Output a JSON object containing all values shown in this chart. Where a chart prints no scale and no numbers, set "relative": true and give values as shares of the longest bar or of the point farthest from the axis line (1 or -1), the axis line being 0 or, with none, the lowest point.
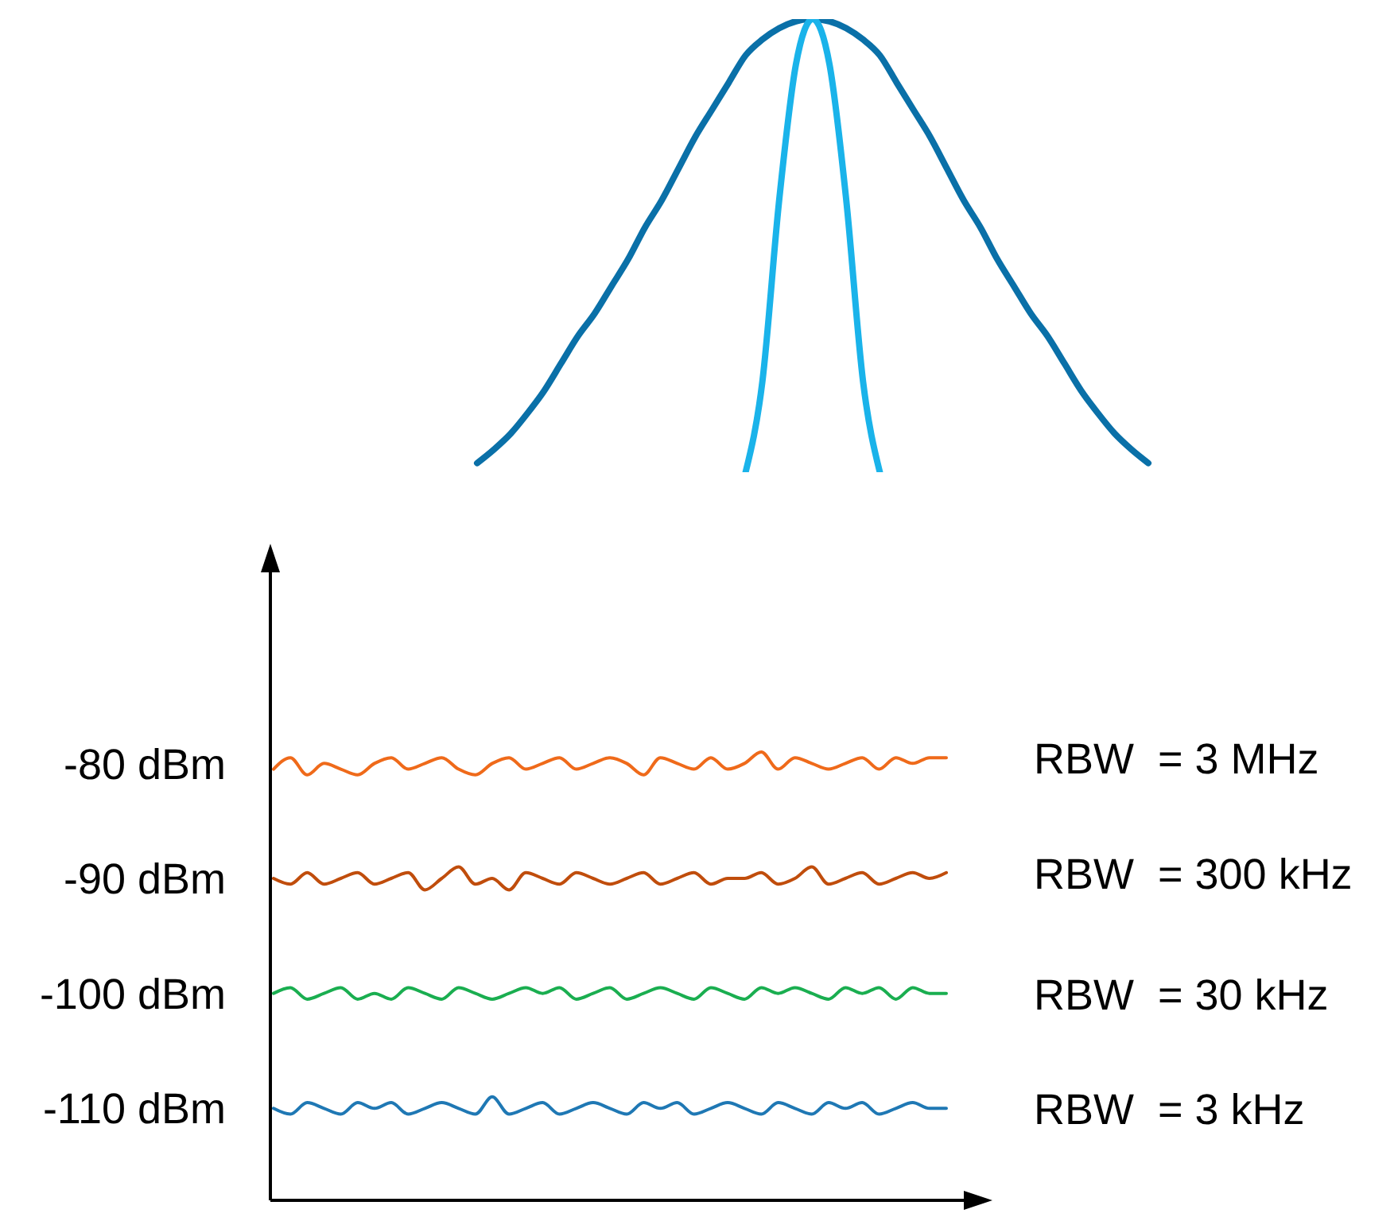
{
  "chart_data": [
    {
      "type": "line",
      "relative": true,
      "tick_labels": false,
      "categories": [
        null,
        null,
        null,
        null,
        null,
        null,
        null,
        null,
        null,
        null,
        null,
        null,
        null,
        null,
        null,
        null,
        null,
        null,
        null,
        null,
        null,
        null,
        null,
        null,
        null,
        null,
        null,
        null,
        null,
        null,
        null,
        null,
        null,
        null,
        null,
        null,
        null,
        null,
        null,
        null,
        null
      ],
      "series": [
        {
          "color": "#0a70a8",
          "values": [
            0.02,
            0.05,
            0.085,
            0.13,
            0.18,
            0.24,
            0.3,
            0.35,
            0.41,
            0.47,
            0.54,
            0.6,
            0.67,
            0.74,
            0.8,
            0.86,
            0.92,
            0.955,
            0.98,
            0.995,
            1,
            0.995,
            0.98,
            0.955,
            0.92,
            0.86,
            0.8,
            0.74,
            0.67,
            0.6,
            0.54,
            0.47,
            0.41,
            0.35,
            0.3,
            0.24,
            0.18,
            0.13,
            0.085,
            0.05,
            0.02
          ]
        },
        {
          "color": "#1ab3ea",
          "values": [
            null,
            null,
            null,
            null,
            null,
            null,
            null,
            null,
            null,
            null,
            null,
            null,
            null,
            null,
            null,
            null,
            0,
            0.2,
            0.6,
            0.9,
            1,
            0.9,
            0.6,
            0.2,
            0,
            null,
            null,
            null,
            null,
            null,
            null,
            null,
            null,
            null,
            null,
            null,
            null,
            null,
            null,
            null,
            null
          ]
        }
      ]
    },
    {
      "type": "line",
      "tick_labels": "y",
      "ylim": [
        -118,
        -62
      ],
      "yticks": [
        {
          "value": -80,
          "label": "-80 dBm"
        },
        {
          "value": -90,
          "label": "-90 dBm"
        },
        {
          "value": -100,
          "label": "-100 dBm"
        },
        {
          "value": -110,
          "label": "-110 dBm"
        }
      ],
      "categories": [
        null,
        null,
        null,
        null,
        null,
        null,
        null,
        null,
        null,
        null,
        null,
        null,
        null,
        null,
        null,
        null,
        null,
        null,
        null,
        null,
        null,
        null,
        null,
        null,
        null,
        null,
        null,
        null,
        null,
        null,
        null,
        null,
        null,
        null,
        null,
        null,
        null,
        null,
        null,
        null,
        null
      ],
      "series": [
        {
          "name": "RBW  = 3 MHz",
          "color": "#ef6a1a",
          "values": [
            -80.5,
            -79.5,
            -81,
            -80,
            -80.5,
            -81,
            -80,
            -79.5,
            -80.5,
            -80,
            -79.5,
            -80.5,
            -81,
            -80,
            -79.5,
            -80.5,
            -80,
            -79.5,
            -80.5,
            -80,
            -79.5,
            -80,
            -81,
            -79.5,
            -80,
            -80.5,
            -79.5,
            -80.5,
            -80,
            -79,
            -80.5,
            -79.5,
            -80,
            -80.5,
            -80,
            -79.5,
            -80.5,
            -79.5,
            -80,
            -79.5,
            -79.5
          ]
        },
        {
          "name": "RBW  = 300 kHz",
          "color": "#c04d0c",
          "values": [
            -90,
            -90.5,
            -89.5,
            -90.5,
            -90,
            -89.5,
            -90.5,
            -90,
            -89.5,
            -91,
            -90,
            -89,
            -90.5,
            -90,
            -91,
            -89.5,
            -90,
            -90.5,
            -89.5,
            -90,
            -90.5,
            -90,
            -89.5,
            -90.5,
            -90,
            -89.5,
            -90.5,
            -90,
            -90,
            -89.5,
            -90.5,
            -90,
            -89,
            -90.5,
            -90,
            -89.5,
            -90.5,
            -90,
            -89.5,
            -90,
            -89.5
          ]
        },
        {
          "name": "RBW  = 30 kHz",
          "color": "#1aae50",
          "values": [
            -100,
            -99.5,
            -100.5,
            -100,
            -99.5,
            -100.5,
            -100,
            -100.5,
            -99.5,
            -100,
            -100.5,
            -99.5,
            -100,
            -100.5,
            -100,
            -99.5,
            -100,
            -99.5,
            -100.5,
            -100,
            -99.5,
            -100.5,
            -100,
            -99.5,
            -100,
            -100.5,
            -99.5,
            -100,
            -100.5,
            -99.5,
            -100,
            -99.5,
            -100,
            -100.5,
            -99.5,
            -100,
            -99.5,
            -100.5,
            -99.5,
            -100,
            -100
          ]
        },
        {
          "name": "RBW  = 3 kHz",
          "color": "#1f78b4",
          "values": [
            -110,
            -110.5,
            -109.5,
            -110,
            -110.5,
            -109.5,
            -110,
            -109.5,
            -110.5,
            -110,
            -109.5,
            -110,
            -110.5,
            -109,
            -110.5,
            -110,
            -109.5,
            -110.5,
            -110,
            -109.5,
            -110,
            -110.5,
            -109.5,
            -110,
            -109.5,
            -110.5,
            -110,
            -109.5,
            -110,
            -110.5,
            -109.5,
            -110,
            -110.5,
            -109.5,
            -110,
            -109.5,
            -110.5,
            -110,
            -109.5,
            -110,
            -110
          ]
        }
      ]
    }
  ]
}
